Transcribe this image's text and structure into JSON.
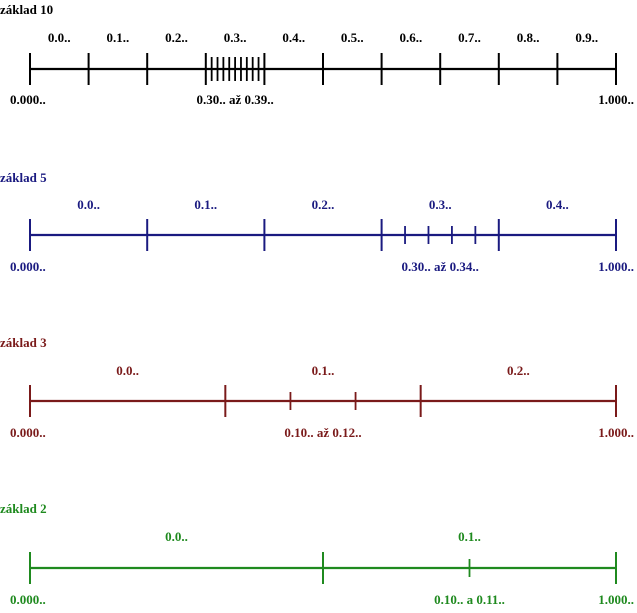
{
  "panels": [
    {
      "title": "základ 10",
      "color": "#000000",
      "base": 10,
      "segment_labels": [
        "0.0..",
        "0.1..",
        "0.2..",
        "0.3..",
        "0.4..",
        "0.5..",
        "0.6..",
        "0.7..",
        "0.8..",
        "0.9.."
      ],
      "subdivided_segment": 3,
      "left_label": "0.000..",
      "sub_label": "0.30.. až 0.39..",
      "right_label": "1.000.."
    },
    {
      "title": "základ 5",
      "color": "#1a1a80",
      "base": 5,
      "segment_labels": [
        "0.0..",
        "0.1..",
        "0.2..",
        "0.3..",
        "0.4.."
      ],
      "subdivided_segment": 3,
      "left_label": "0.000..",
      "sub_label": "0.30.. až 0.34..",
      "right_label": "1.000.."
    },
    {
      "title": "základ 3",
      "color": "#7a1a1a",
      "base": 3,
      "segment_labels": [
        "0.0..",
        "0.1..",
        "0.2.."
      ],
      "subdivided_segment": 1,
      "left_label": "0.000..",
      "sub_label": "0.10.. až 0.12..",
      "right_label": "1.000.."
    },
    {
      "title": "základ 2",
      "color": "#1f8a1f",
      "base": 2,
      "segment_labels": [
        "0.0..",
        "0.1.."
      ],
      "subdivided_segment": 1,
      "left_label": "0.000..",
      "sub_label": "0.10.. a 0.11..",
      "right_label": "1.000.."
    }
  ]
}
